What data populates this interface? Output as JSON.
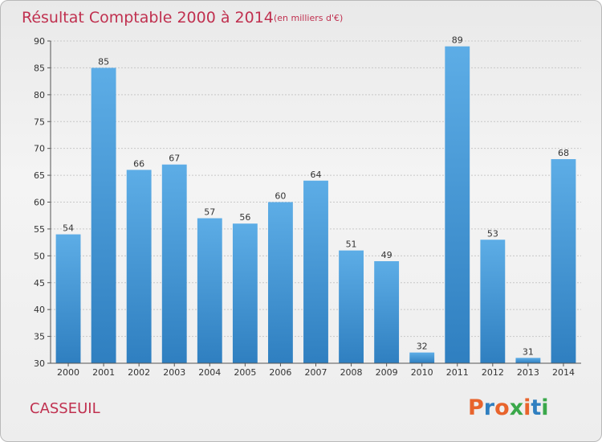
{
  "chart_data": {
    "type": "bar",
    "title": "Résultat Comptable 2000 à 2014",
    "subtitle": "(en milliers d'€)",
    "categories": [
      "2000",
      "2001",
      "2002",
      "2003",
      "2004",
      "2005",
      "2006",
      "2007",
      "2008",
      "2009",
      "2010",
      "2011",
      "2012",
      "2013",
      "2014"
    ],
    "values": [
      54,
      85,
      66,
      67,
      57,
      56,
      60,
      64,
      51,
      49,
      32,
      89,
      53,
      31,
      68
    ],
    "ylim": [
      30,
      90
    ],
    "yticks": [
      30,
      35,
      40,
      45,
      50,
      55,
      60,
      65,
      70,
      75,
      80,
      85,
      90
    ],
    "grid": true,
    "legend": "none",
    "colors": {
      "bar_top": "#5dade6",
      "bar_bottom": "#2f7fc0",
      "title": "#c0304f"
    }
  },
  "footer": {
    "commune": "CASSEUIL",
    "brand": "Proxiti",
    "brand_colors": [
      "#e8642c",
      "#2f7fc0",
      "#e8642c",
      "#3aa84a",
      "#e8642c",
      "#2f7fc0",
      "#3aa84a"
    ]
  }
}
